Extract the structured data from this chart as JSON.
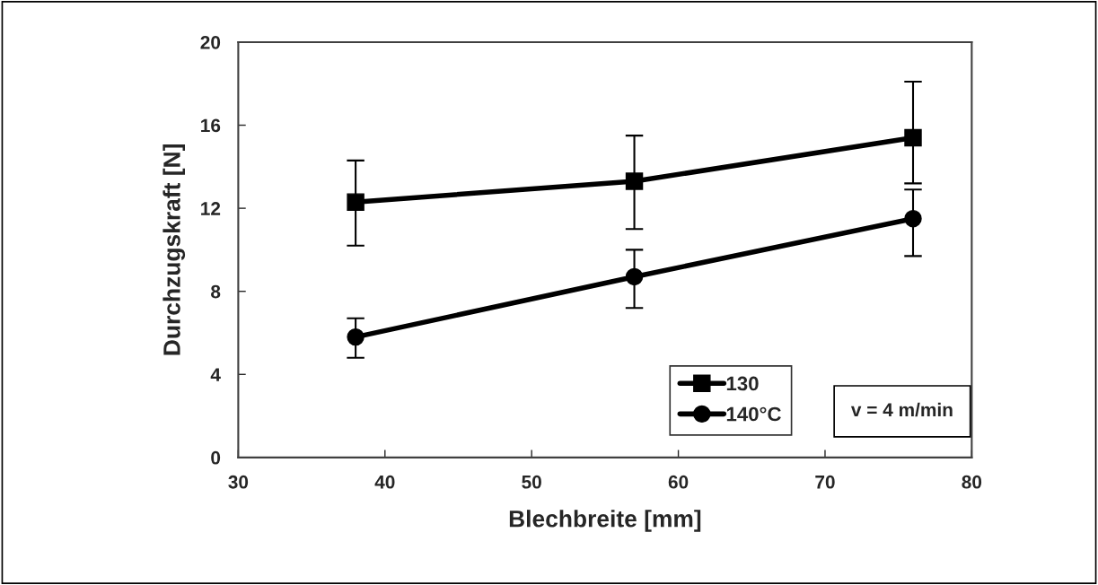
{
  "chart_data": {
    "type": "line",
    "xlabel": "Blechbreite [mm]",
    "ylabel": "Durchzugskraft [N]",
    "x": [
      38,
      57,
      76
    ],
    "series": [
      {
        "name": "130",
        "color": "#000000",
        "marker": "square",
        "values": [
          12.3,
          13.3,
          15.4
        ],
        "errors": [
          [
            10.2,
            14.3
          ],
          [
            11.0,
            15.5
          ],
          [
            13.2,
            18.1
          ]
        ]
      },
      {
        "name": "140°C",
        "color": "#000000",
        "marker": "circle",
        "values": [
          5.8,
          8.7,
          11.5
        ],
        "errors": [
          [
            4.8,
            6.7
          ],
          [
            7.2,
            10.0
          ],
          [
            9.7,
            12.9
          ]
        ]
      }
    ],
    "xlim": [
      30,
      80
    ],
    "xticks": [
      30,
      40,
      50,
      60,
      70,
      80
    ],
    "ylim": [
      0,
      20
    ],
    "yticks": [
      0,
      4,
      8,
      12,
      16,
      20
    ],
    "grid": false,
    "legend": "bottom right",
    "line_style": "solid",
    "annotations": [
      "v = 4 m/min"
    ]
  }
}
